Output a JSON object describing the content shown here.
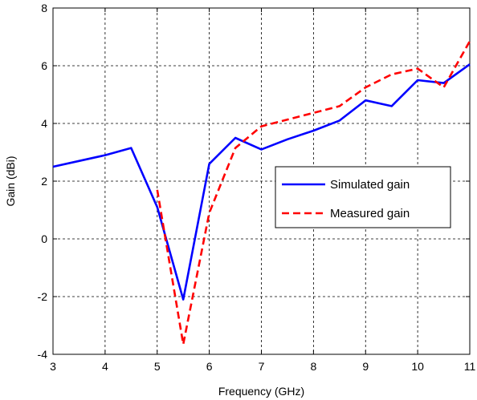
{
  "chart_data": {
    "type": "line",
    "title": "",
    "xlabel": "Frequency (GHz)",
    "ylabel": "Gain (dBi)",
    "xlim": [
      3,
      11
    ],
    "ylim": [
      -4,
      8
    ],
    "xticks": [
      3,
      4,
      5,
      6,
      7,
      8,
      9,
      10,
      11
    ],
    "yticks": [
      -4,
      -2,
      0,
      2,
      4,
      6,
      8
    ],
    "grid": true,
    "legend_position": "right",
    "series": [
      {
        "name": "Simulated gain",
        "color": "#0000ff",
        "dash": "solid",
        "x": [
          3,
          3.5,
          4,
          4.5,
          5,
          5.5,
          6,
          6.5,
          7,
          7.5,
          8,
          8.5,
          9,
          9.5,
          10,
          10.5,
          11
        ],
        "y": [
          2.5,
          2.7,
          2.9,
          3.15,
          1.1,
          -2.1,
          2.6,
          3.5,
          3.1,
          3.45,
          3.75,
          4.1,
          4.8,
          4.6,
          5.5,
          5.4,
          6.05
        ]
      },
      {
        "name": "Measured gain",
        "color": "#ff0000",
        "dash": "dashed",
        "x": [
          5,
          5.5,
          6,
          6.5,
          7,
          8.5,
          9,
          9.5,
          10,
          10.5,
          11
        ],
        "y": [
          1.7,
          -3.65,
          0.9,
          3.15,
          3.9,
          4.6,
          5.25,
          5.7,
          5.9,
          5.25,
          6.85
        ]
      }
    ]
  }
}
